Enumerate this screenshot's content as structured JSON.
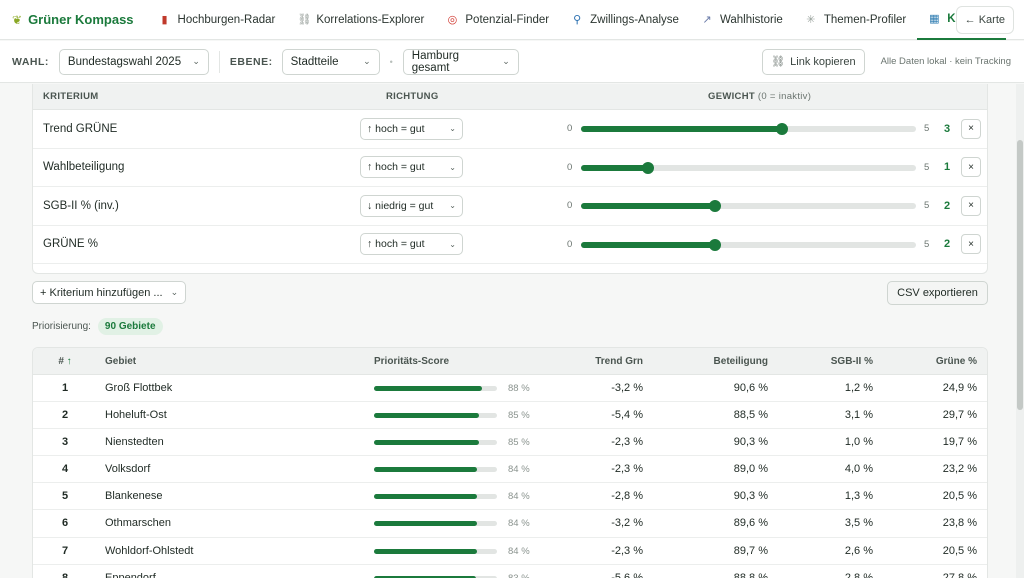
{
  "brand": {
    "name": "Grüner Kompass",
    "icon": "sprout-icon"
  },
  "nav": {
    "tabs": [
      {
        "label": "Hochburgen-Radar",
        "icon": "bar-chart-icon"
      },
      {
        "label": "Korrelations-Explorer",
        "icon": "link-icon"
      },
      {
        "label": "Potenzial-Finder",
        "icon": "target-icon"
      },
      {
        "label": "Zwillings-Analyse",
        "icon": "magnifier-icon"
      },
      {
        "label": "Wahlhistorie",
        "icon": "line-chart-icon"
      },
      {
        "label": "Themen-Profiler",
        "icon": "sparkle-icon"
      },
      {
        "label": "Kanvass",
        "icon": "map-icon"
      }
    ],
    "map_button": "← Karte"
  },
  "filters": {
    "wahl_label": "WAHL:",
    "wahl_value": "Bundestagswahl 2025",
    "ebene_label": "EBENE:",
    "ebene_value": "Stadtteile",
    "region_value": "Hamburg gesamt",
    "link_button": "Link kopieren",
    "local_note": "Alle Daten lokal · kein Tracking"
  },
  "criteria": {
    "headers": {
      "name": "KRITERIUM",
      "direction": "RICHTUNG",
      "weight": "GEWICHT",
      "weight_note": "(0 = inaktiv)"
    },
    "slider_min": "0",
    "slider_max": "5",
    "max_weight": 5,
    "rows": [
      {
        "name": "Trend GRÜNE",
        "direction": "↑ hoch = gut",
        "weight": 3
      },
      {
        "name": "Wahlbeteiligung",
        "direction": "↑ hoch = gut",
        "weight": 1
      },
      {
        "name": "SGB-II % (inv.)",
        "direction": "↓ niedrig = gut",
        "weight": 2
      },
      {
        "name": "GRÜNE %",
        "direction": "↑ hoch = gut",
        "weight": 2
      }
    ],
    "remove_label": "×",
    "add_button": "+ Kriterium hinzufügen ...",
    "csv_button": "CSV exportieren"
  },
  "priority": {
    "label": "Priorisierung:",
    "badge": "90 Gebiete"
  },
  "table": {
    "headers": {
      "rank": "#",
      "sort": "↑",
      "area": "Gebiet",
      "score": "Prioritäts-Score",
      "trend": "Trend Grn",
      "turnout": "Beteiligung",
      "sgb": "SGB-II %",
      "greens": "Grüne %"
    },
    "rows": [
      {
        "rank": "1",
        "area": "Groß Flottbek",
        "score": 88,
        "score_label": "88 %",
        "trend": "-3,2 %",
        "turnout": "90,6 %",
        "sgb": "1,2 %",
        "greens": "24,9 %"
      },
      {
        "rank": "2",
        "area": "Hoheluft-Ost",
        "score": 85,
        "score_label": "85 %",
        "trend": "-5,4 %",
        "turnout": "88,5 %",
        "sgb": "3,1 %",
        "greens": "29,7 %"
      },
      {
        "rank": "3",
        "area": "Nienstedten",
        "score": 85,
        "score_label": "85 %",
        "trend": "-2,3 %",
        "turnout": "90,3 %",
        "sgb": "1,0 %",
        "greens": "19,7 %"
      },
      {
        "rank": "4",
        "area": "Volksdorf",
        "score": 84,
        "score_label": "84 %",
        "trend": "-2,3 %",
        "turnout": "89,0 %",
        "sgb": "4,0 %",
        "greens": "23,2 %"
      },
      {
        "rank": "5",
        "area": "Blankenese",
        "score": 84,
        "score_label": "84 %",
        "trend": "-2,8 %",
        "turnout": "90,3 %",
        "sgb": "1,3 %",
        "greens": "20,5 %"
      },
      {
        "rank": "6",
        "area": "Othmarschen",
        "score": 84,
        "score_label": "84 %",
        "trend": "-3,2 %",
        "turnout": "89,6 %",
        "sgb": "3,5 %",
        "greens": "23,8 %"
      },
      {
        "rank": "7",
        "area": "Wohldorf-Ohlstedt",
        "score": 84,
        "score_label": "84 %",
        "trend": "-2,3 %",
        "turnout": "89,7 %",
        "sgb": "2,6 %",
        "greens": "20,5 %"
      },
      {
        "rank": "8",
        "area": "Eppendorf",
        "score": 83,
        "score_label": "83 %",
        "trend": "-5,6 %",
        "turnout": "88,8 %",
        "sgb": "2,8 %",
        "greens": "27,8 %"
      }
    ]
  },
  "colors": {
    "accent": "#1b7a3c",
    "badge_bg": "#e1f1e5"
  }
}
